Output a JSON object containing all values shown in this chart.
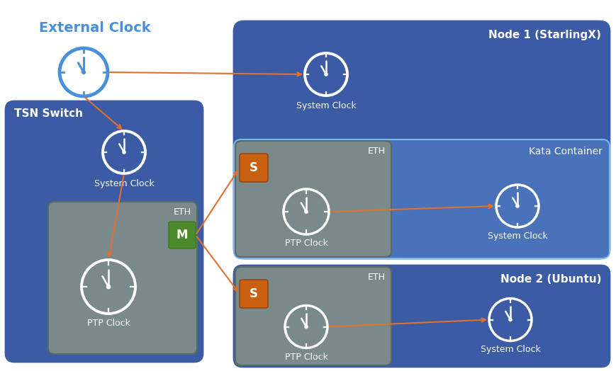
{
  "bg_color": "#ffffff",
  "blue_dark": "#3B5BA5",
  "blue_kata": "#4A72B8",
  "blue_light": "#6A9AD5",
  "gray_box": "#7a8a8a",
  "orange_arrow": "#E07030",
  "orange_box": "#C86010",
  "green_box": "#4a8a2a",
  "white": "#ffffff",
  "external_clock_color": "#4A90D9",
  "title": "External Clock",
  "tsn_label": "TSN Switch",
  "node1_label": "Node 1 (StarlingX)",
  "node2_label": "Node 2 (Ubuntu)",
  "kata_label": "Kata Container",
  "eth_label": "ETH",
  "system_clock_label": "System Clock",
  "ptp_clock_label": "PTP Clock",
  "m_label": "M",
  "s_label": "S",
  "figsize": [
    8.69,
    5.24
  ],
  "dpi": 100,
  "xlim": [
    0,
    869
  ],
  "ylim": [
    0,
    524
  ]
}
